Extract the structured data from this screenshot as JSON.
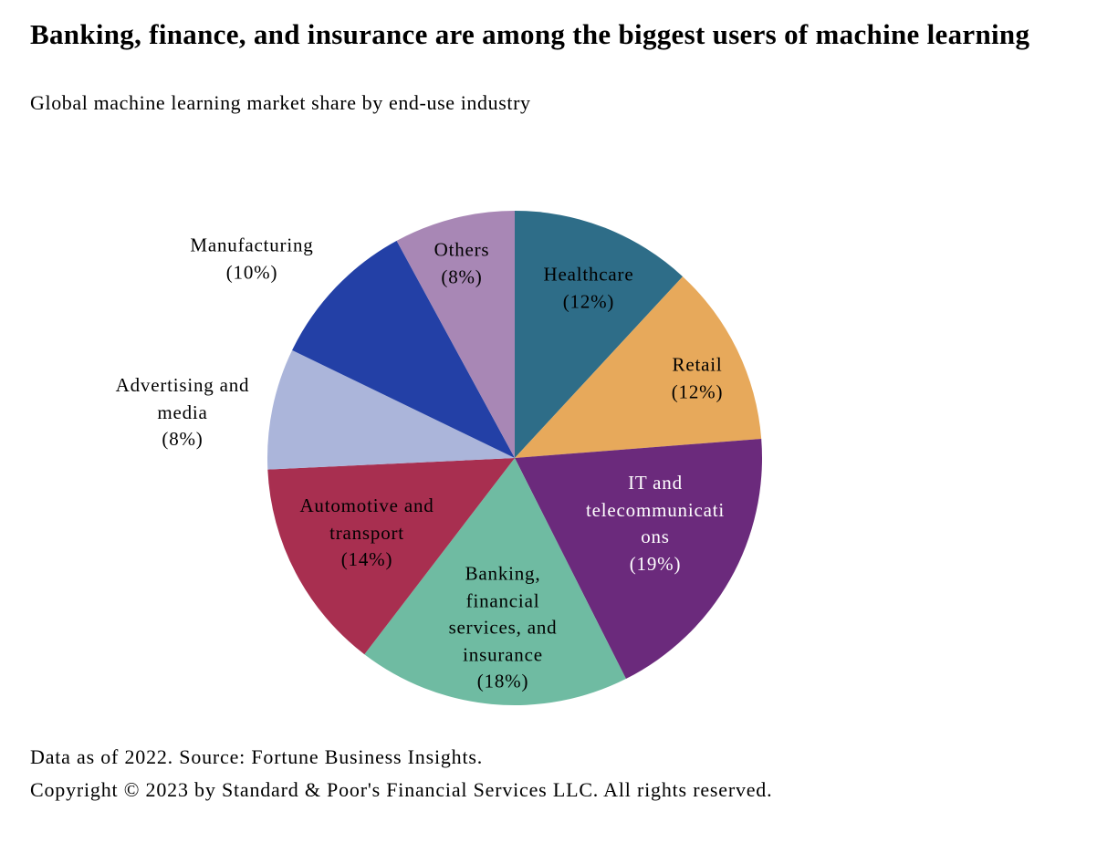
{
  "title": "Banking, finance, and insurance are among the biggest users of machine learning",
  "subtitle": "Global machine learning market share by end-use industry",
  "footer": {
    "source": "Data as of 2022. Source: Fortune Business Insights.",
    "copyright": "Copyright © 2023 by Standard & Poor's Financial Services LLC. All rights reserved."
  },
  "chart_data": {
    "type": "pie",
    "title": "Banking, finance, and insurance are among the biggest users of machine learning",
    "subtitle": "Global machine learning market share by end-use industry",
    "unit": "%",
    "start": "top",
    "direction": "clockwise",
    "slices": [
      {
        "name": "Healthcare",
        "value": 12,
        "pct_label": "(12%)",
        "color": "#2e6d88",
        "text_color": "#000000"
      },
      {
        "name": "Retail",
        "value": 12,
        "pct_label": "(12%)",
        "color": "#e7a95b",
        "text_color": "#000000"
      },
      {
        "name": "IT and telecommunications",
        "value": 19,
        "pct_label": "(19%)",
        "color": "#6b2a7c",
        "text_color": "#ffffff"
      },
      {
        "name": "Banking, financial services, and insurance",
        "value": 18,
        "pct_label": "(18%)",
        "color": "#6fbba2",
        "text_color": "#000000"
      },
      {
        "name": "Automotive and transport",
        "value": 14,
        "pct_label": "(14%)",
        "color": "#a82f50",
        "text_color": "#000000"
      },
      {
        "name": "Advertising and media",
        "value": 8,
        "pct_label": "(8%)",
        "color": "#abb5da",
        "text_color": "#000000"
      },
      {
        "name": "Manufacturing",
        "value": 10,
        "pct_label": "(10%)",
        "color": "#2340a6",
        "text_color": "#000000"
      },
      {
        "name": "Others",
        "value": 8,
        "pct_label": "(8%)",
        "color": "#a887b5",
        "text_color": "#000000"
      }
    ]
  }
}
